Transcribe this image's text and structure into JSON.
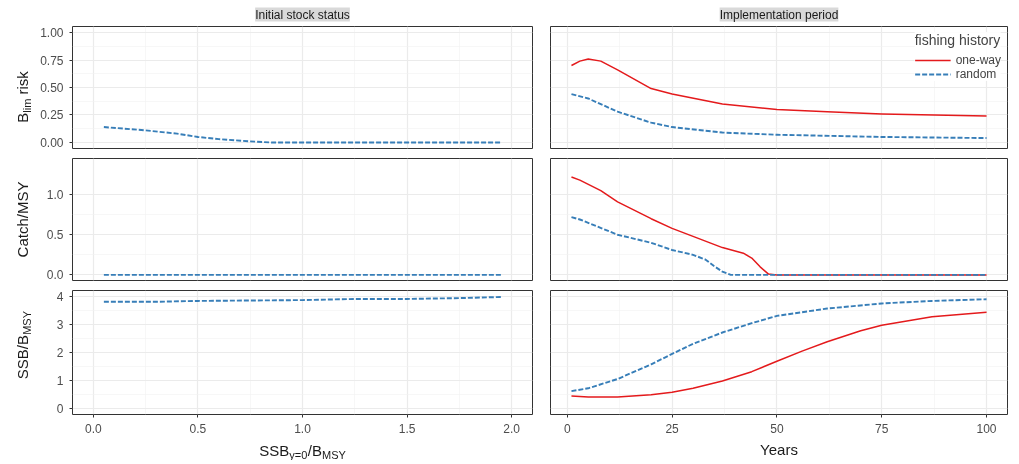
{
  "chart_data": [
    {
      "type": "line",
      "title": "Initial stock status",
      "ylabel": "B$_{lim}$ risk",
      "xlim": [
        -0.1,
        2.1
      ],
      "ylim": [
        -0.055,
        1.055
      ],
      "xticks": [
        0,
        0.5,
        1,
        1.5,
        2
      ],
      "yticks": [
        {
          "value": 0,
          "label": "0.00"
        },
        {
          "value": 0.25,
          "label": "0.25"
        },
        {
          "value": 0.5,
          "label": "0.50"
        },
        {
          "value": 0.75,
          "label": "0.75"
        },
        {
          "value": 1,
          "label": "1.00"
        }
      ],
      "tick_labels": "y",
      "grid": true,
      "series": [
        {
          "color": "#377eb8",
          "line_style": "dashed",
          "x": [
            0.05,
            0.25,
            0.4,
            0.5,
            0.6,
            0.75,
            0.85,
            1.0,
            1.5,
            1.95
          ],
          "values": [
            0.14,
            0.11,
            0.08,
            0.05,
            0.03,
            0.01,
            0,
            0,
            0,
            0
          ]
        }
      ]
    },
    {
      "type": "line",
      "title": "Implementation period",
      "legend_title": "fishing history",
      "legend": "top right",
      "xlim": [
        -4,
        105
      ],
      "ylim": [
        -0.055,
        1.055
      ],
      "xticks": [
        0,
        25,
        50,
        75,
        100
      ],
      "yticks": [
        0,
        0.25,
        0.5,
        0.75,
        1
      ],
      "tick_labels": false,
      "grid": true,
      "series": [
        {
          "name": "one-way",
          "color": "#e41a1c",
          "line_style": "solid",
          "x": [
            1,
            3,
            5,
            8,
            12,
            20,
            25,
            37,
            50,
            62,
            75,
            100
          ],
          "values": [
            0.7,
            0.74,
            0.76,
            0.74,
            0.66,
            0.49,
            0.44,
            0.35,
            0.3,
            0.28,
            0.26,
            0.24
          ]
        },
        {
          "name": "random",
          "color": "#377eb8",
          "line_style": "dashed",
          "x": [
            1,
            5,
            12,
            20,
            25,
            37,
            50,
            75,
            100
          ],
          "values": [
            0.44,
            0.4,
            0.28,
            0.18,
            0.14,
            0.09,
            0.07,
            0.05,
            0.04
          ]
        }
      ]
    },
    {
      "type": "line",
      "ylabel": "Catch/MSY",
      "xlim": [
        -0.1,
        2.1
      ],
      "ylim": [
        -0.07,
        1.45
      ],
      "xticks": [
        0,
        0.5,
        1,
        1.5,
        2
      ],
      "yticks": [
        {
          "value": 0,
          "label": "0.0"
        },
        {
          "value": 0.5,
          "label": "0.5"
        },
        {
          "value": 1,
          "label": "1.0"
        }
      ],
      "tick_labels": "y",
      "grid": true,
      "series": [
        {
          "color": "#377eb8",
          "line_style": "dashed",
          "x": [
            0.05,
            1.0,
            1.95
          ],
          "values": [
            0,
            0,
            0
          ]
        }
      ]
    },
    {
      "type": "line",
      "xlim": [
        -4,
        105
      ],
      "ylim": [
        -0.07,
        1.45
      ],
      "xticks": [
        0,
        25,
        50,
        75,
        100
      ],
      "yticks": [
        0,
        0.5,
        1
      ],
      "tick_labels": false,
      "grid": true,
      "series": [
        {
          "color": "#e41a1c",
          "line_style": "solid",
          "x": [
            1,
            3,
            8,
            12,
            20,
            25,
            30,
            37,
            42,
            44,
            46,
            48,
            50,
            75,
            100
          ],
          "values": [
            1.22,
            1.18,
            1.05,
            0.91,
            0.7,
            0.58,
            0.48,
            0.34,
            0.27,
            0.21,
            0.1,
            0.01,
            0,
            0,
            0
          ]
        },
        {
          "color": "#377eb8",
          "line_style": "dashed",
          "x": [
            1,
            3,
            12,
            20,
            25,
            30,
            33,
            35,
            37,
            39,
            50,
            75,
            100
          ],
          "values": [
            0.72,
            0.69,
            0.5,
            0.4,
            0.31,
            0.25,
            0.19,
            0.11,
            0.04,
            0,
            0,
            0,
            0
          ]
        }
      ]
    },
    {
      "type": "line",
      "ylabel": "SSB/B$_{MSY}$",
      "xlabel": "SSB$_{y=0}$/B$_{MSY}$",
      "xlim": [
        -0.1,
        2.1
      ],
      "ylim": [
        -0.2,
        4.2
      ],
      "xticks": [
        {
          "value": 0,
          "label": "0.0"
        },
        {
          "value": 0.5,
          "label": "0.5"
        },
        {
          "value": 1,
          "label": "1.0"
        },
        {
          "value": 1.5,
          "label": "1.5"
        },
        {
          "value": 2,
          "label": "2.0"
        }
      ],
      "yticks": [
        0,
        1,
        2,
        3,
        4
      ],
      "grid": true,
      "series": [
        {
          "color": "#377eb8",
          "line_style": "dashed",
          "x": [
            0.05,
            0.3,
            0.5,
            1.0,
            1.25,
            1.5,
            1.75,
            1.95
          ],
          "values": [
            3.8,
            3.8,
            3.83,
            3.86,
            3.9,
            3.9,
            3.93,
            3.97
          ]
        }
      ]
    },
    {
      "type": "line",
      "xlabel": "Years",
      "xlim": [
        -4,
        105
      ],
      "ylim": [
        -0.2,
        4.2
      ],
      "xticks": [
        0,
        25,
        50,
        75,
        100
      ],
      "yticks": [
        0,
        1,
        2,
        3,
        4
      ],
      "tick_labels": "x",
      "grid": true,
      "series": [
        {
          "color": "#e41a1c",
          "line_style": "solid",
          "x": [
            1,
            5,
            12,
            20,
            25,
            30,
            37,
            44,
            50,
            56,
            62,
            70,
            75,
            87,
            100
          ],
          "values": [
            0.46,
            0.42,
            0.42,
            0.5,
            0.59,
            0.73,
            0.99,
            1.32,
            1.69,
            2.05,
            2.38,
            2.77,
            2.97,
            3.27,
            3.43
          ]
        },
        {
          "color": "#377eb8",
          "line_style": "dashed",
          "x": [
            1,
            5,
            12,
            20,
            25,
            30,
            37,
            44,
            50,
            62,
            75,
            87,
            100
          ],
          "values": [
            0.63,
            0.73,
            1.06,
            1.58,
            1.95,
            2.31,
            2.71,
            3.04,
            3.3,
            3.56,
            3.74,
            3.83,
            3.89
          ]
        }
      ]
    }
  ]
}
